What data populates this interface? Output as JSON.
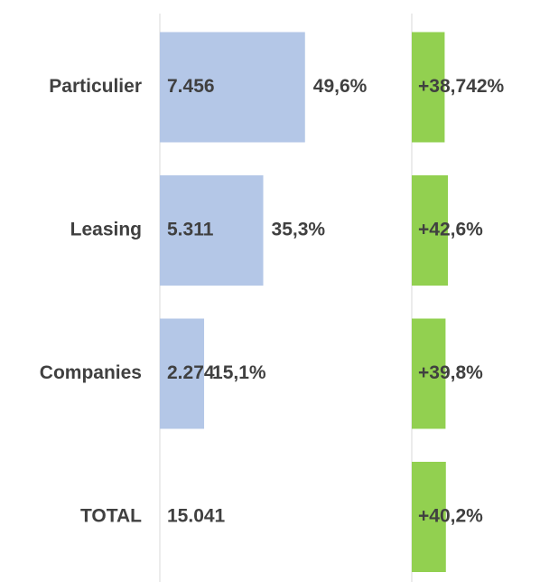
{
  "chart_data": {
    "type": "bar",
    "categories": [
      "Particulier",
      "Leasing",
      "Companies",
      "TOTAL"
    ],
    "values": [
      7456,
      5311,
      2274,
      null
    ],
    "value_labels": [
      "7.456",
      "5.311",
      "2.274",
      null
    ],
    "color": "#b4c7e7",
    "xlim": [
      0,
      12800
    ],
    "shares": [
      "49,6%",
      "35,3%",
      "15,1%",
      null
    ],
    "total": {
      "value": 15041,
      "label": "15.041"
    },
    "growth": [
      38.742,
      42.6,
      39.8,
      40.2
    ],
    "growth_labels": [
      "+38,742%",
      "+42,6%",
      "+39,8%",
      "+40,2%"
    ],
    "growth_color": "#92d050",
    "growth_xlim": [
      0,
      150
    ]
  }
}
